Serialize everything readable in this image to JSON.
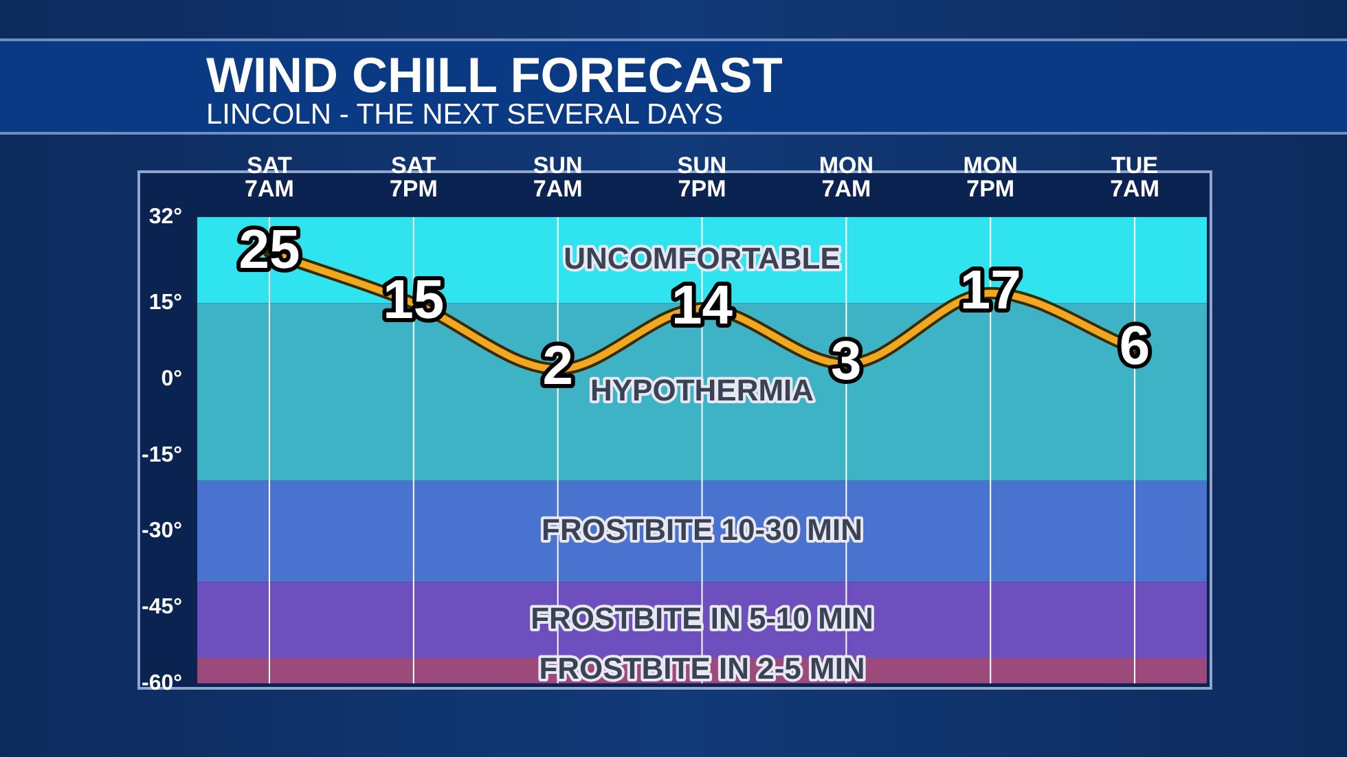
{
  "chart_data": {
    "type": "line",
    "title": "WIND CHILL FORECAST",
    "subtitle": "LINCOLN - THE NEXT SEVERAL DAYS",
    "categories": [
      "SAT 7AM",
      "SAT 7PM",
      "SUN 7AM",
      "SUN 7PM",
      "MON 7AM",
      "MON 7PM",
      "TUE 7AM"
    ],
    "series": [
      {
        "color": "#f0a820",
        "values": [
          25,
          15,
          2,
          14,
          3,
          17,
          6
        ]
      }
    ],
    "ylim": [
      -60,
      32
    ],
    "yticks": [
      {
        "value": 32,
        "label": "32°"
      },
      {
        "value": 15,
        "label": "15°"
      },
      {
        "value": 0,
        "label": "0°"
      },
      {
        "value": -15,
        "label": "-15°"
      },
      {
        "value": -30,
        "label": "-30°"
      },
      {
        "value": -45,
        "label": "-45°"
      },
      {
        "value": -60,
        "label": "-60°"
      }
    ],
    "bands": [
      {
        "axis": "y",
        "from": 15,
        "to": 32,
        "label": "UNCOMFORTABLE",
        "color": "#2fe4ee"
      },
      {
        "axis": "y",
        "from": -20,
        "to": 15,
        "label": "HYPOTHERMIA",
        "color": "#3fb3c6"
      },
      {
        "axis": "y",
        "from": -40,
        "to": -20,
        "label": "FROSTBITE 10-30 MIN",
        "color": "#4a72cf"
      },
      {
        "axis": "y",
        "from": -55,
        "to": -40,
        "label": "FROSTBITE IN 5-10 MIN",
        "color": "#6e4fbe"
      },
      {
        "axis": "y",
        "from": -60,
        "to": -55,
        "label": "FROSTBITE IN 2-5 MIN",
        "color": "#9c4a7c"
      }
    ],
    "grid": "x",
    "data_labels": true,
    "marker": "none",
    "legend": false
  }
}
